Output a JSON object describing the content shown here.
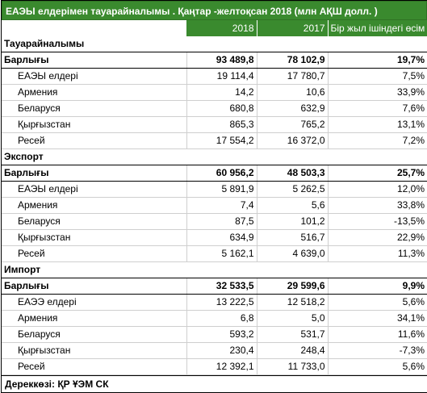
{
  "title": "ЕАЭЫ елдерімен тауарайналымы . Қаңтар -желтоқсан 2018 (млн АҚШ долл. )",
  "columns": [
    "",
    "2018",
    "2017",
    "Бір жыл ішіндегі өсім"
  ],
  "sections": [
    {
      "name": "Тауарайналымы",
      "total": {
        "label": "Барлығы",
        "v2018": "93 489,8",
        "v2017": "78 102,9",
        "growth": "19,7%"
      },
      "rows": [
        {
          "label": "ЕАЭЫ елдері",
          "v2018": "19 114,4",
          "v2017": "17 780,7",
          "growth": "7,5%"
        },
        {
          "label": "Армения",
          "v2018": "14,2",
          "v2017": "10,6",
          "growth": "33,9%"
        },
        {
          "label": "Беларуся",
          "v2018": "680,8",
          "v2017": "632,9",
          "growth": "7,6%"
        },
        {
          "label": "Қырғызстан",
          "v2018": "865,3",
          "v2017": "765,2",
          "growth": "13,1%"
        },
        {
          "label": "Ресей",
          "v2018": "17 554,2",
          "v2017": "16 372,0",
          "growth": "7,2%"
        }
      ]
    },
    {
      "name": "Экспорт",
      "total": {
        "label": "Барлығы",
        "v2018": "60 956,2",
        "v2017": "48 503,3",
        "growth": "25,7%"
      },
      "rows": [
        {
          "label": "ЕАЭЫ елдері",
          "v2018": "5 891,9",
          "v2017": "5 262,5",
          "growth": "12,0%"
        },
        {
          "label": "Армения",
          "v2018": "7,4",
          "v2017": "5,6",
          "growth": "33,8%"
        },
        {
          "label": "Беларуся",
          "v2018": "87,5",
          "v2017": "101,2",
          "growth": "-13,5%"
        },
        {
          "label": "Қырғызстан",
          "v2018": "634,9",
          "v2017": "516,7",
          "growth": "22,9%"
        },
        {
          "label": "Ресей",
          "v2018": "5 162,1",
          "v2017": "4 639,0",
          "growth": "11,3%"
        }
      ]
    },
    {
      "name": "Импорт",
      "total": {
        "label": "Барлығы",
        "v2018": "32 533,5",
        "v2017": "29 599,6",
        "growth": "9,9%"
      },
      "rows": [
        {
          "label": "ЕАЭЭ елдері",
          "v2018": "13 222,5",
          "v2017": "12 518,2",
          "growth": "5,6%"
        },
        {
          "label": "Армения",
          "v2018": "6,8",
          "v2017": "5,0",
          "growth": "34,1%"
        },
        {
          "label": "Беларуся",
          "v2018": "593,2",
          "v2017": "531,7",
          "growth": "11,6%"
        },
        {
          "label": "Қырғызстан",
          "v2018": "230,4",
          "v2017": "248,4",
          "growth": "-7,3%"
        },
        {
          "label": "Ресей",
          "v2018": "12 392,1",
          "v2017": "11 733,0",
          "growth": "5,6%"
        }
      ]
    }
  ],
  "footer": "Дереккөзі:  ҚР ҰЭМ СК",
  "colors": {
    "header_green": "#3a8a2e"
  }
}
